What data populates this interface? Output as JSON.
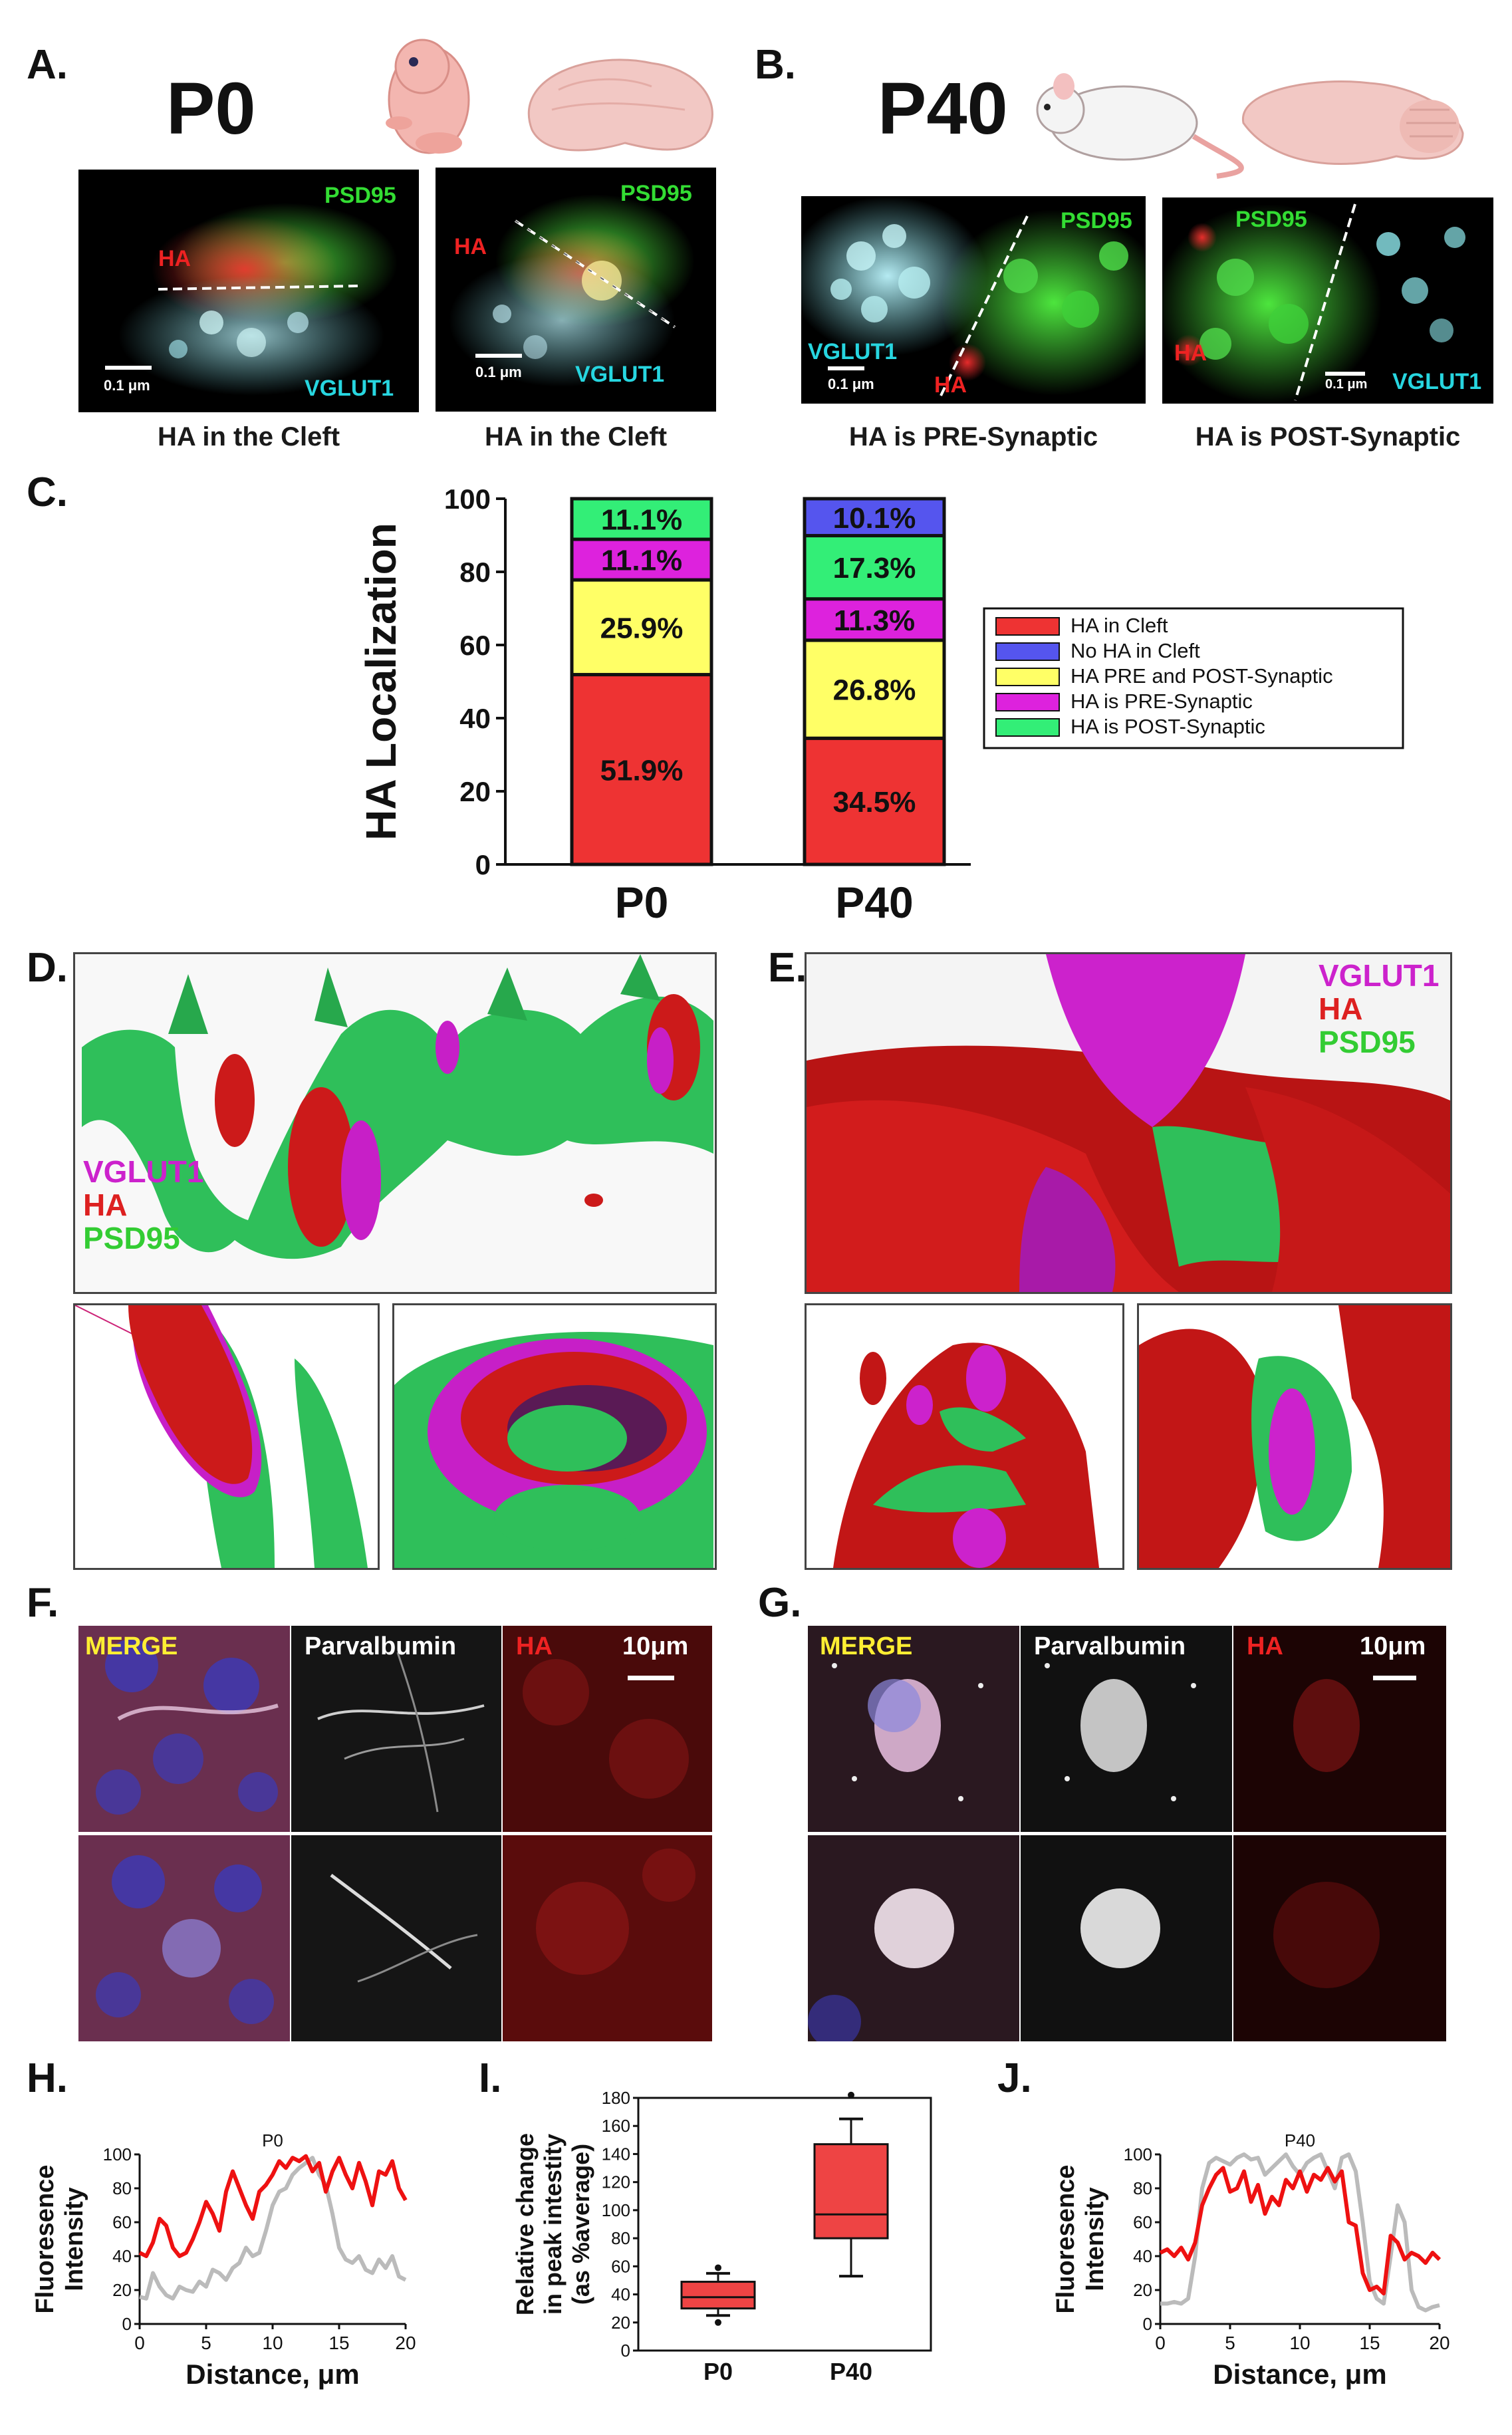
{
  "panels": {
    "A": {
      "letter": "A.",
      "age": "P0",
      "captions": [
        "HA in the Cleft",
        "HA in the Cleft"
      ],
      "img1": {
        "psd": "PSD95",
        "ha": "HA",
        "vglut": "VGLUT1",
        "scale": "0.1 μm"
      },
      "img2": {
        "psd": "PSD95",
        "ha": "HA",
        "vglut": "VGLUT1",
        "scale": "0.1 μm"
      }
    },
    "B": {
      "letter": "B.",
      "age": "P40",
      "captions": [
        "HA is PRE-Synaptic",
        "HA is POST-Synaptic"
      ],
      "img1": {
        "psd": "PSD95",
        "ha": "HA",
        "vglut": "VGLUT1",
        "scale": "0.1 μm"
      },
      "img2": {
        "psd": "PSD95",
        "ha": "HA",
        "vglut": "VGLUT1",
        "scale": "0.1 μm"
      }
    },
    "C": {
      "letter": "C."
    },
    "D": {
      "letter": "D.",
      "legend": [
        "VGLUT1",
        "HA",
        "PSD95"
      ]
    },
    "E": {
      "letter": "E.",
      "legend": [
        "VGLUT1",
        "HA",
        "PSD95"
      ]
    },
    "F": {
      "letter": "F.",
      "merge": "MERGE",
      "pv": "Parvalbumin",
      "ha": "HA",
      "scale": "10μm"
    },
    "G": {
      "letter": "G.",
      "merge": "MERGE",
      "pv": "Parvalbumin",
      "ha": "HA",
      "scale": "10μm"
    },
    "H": {
      "letter": "H."
    },
    "I": {
      "letter": "I."
    },
    "J": {
      "letter": "J."
    }
  },
  "colors": {
    "red": "#ee3333",
    "blue": "#5555ee",
    "yellow": "#ffff66",
    "magenta": "#dd22dd",
    "green": "#33ee77",
    "vglut_text": "#27d6e0",
    "psd_text": "#33dd33",
    "ha_text": "#ee2222",
    "merge_text": "#ffee33",
    "render_magenta": "#cc22cc"
  },
  "chart_data": [
    {
      "id": "C",
      "type": "bar",
      "stacked": true,
      "ylabel": "HA Localization",
      "ylim": [
        0,
        100
      ],
      "yticks": [
        0,
        20,
        40,
        60,
        80,
        100
      ],
      "categories": [
        "P0",
        "P40"
      ],
      "legend": [
        {
          "name": "HA in Cleft",
          "color": "#ee3333"
        },
        {
          "name": "No HA in Cleft",
          "color": "#5555ee"
        },
        {
          "name": "HA PRE and POST-Synaptic",
          "color": "#ffff66"
        },
        {
          "name": "HA is PRE-Synaptic",
          "color": "#dd22dd"
        },
        {
          "name": "HA is POST-Synaptic",
          "color": "#33ee77"
        }
      ],
      "stacks": [
        {
          "category": "P0",
          "segments": [
            {
              "series": "HA in Cleft",
              "value": 51.9,
              "label": "51.9%",
              "color": "#ee3333"
            },
            {
              "series": "HA PRE and POST-Synaptic",
              "value": 25.9,
              "label": "25.9%",
              "color": "#ffff66"
            },
            {
              "series": "HA is PRE-Synaptic",
              "value": 11.1,
              "label": "11.1%",
              "color": "#dd22dd"
            },
            {
              "series": "HA is POST-Synaptic",
              "value": 11.1,
              "label": "11.1%",
              "color": "#33ee77"
            }
          ]
        },
        {
          "category": "P40",
          "segments": [
            {
              "series": "HA in Cleft",
              "value": 34.5,
              "label": "34.5%",
              "color": "#ee3333"
            },
            {
              "series": "HA PRE and POST-Synaptic",
              "value": 26.8,
              "label": "26.8%",
              "color": "#ffff66"
            },
            {
              "series": "HA is PRE-Synaptic",
              "value": 11.3,
              "label": "11.3%",
              "color": "#dd22dd"
            },
            {
              "series": "HA is POST-Synaptic",
              "value": 17.3,
              "label": "17.3%",
              "color": "#33ee77"
            },
            {
              "series": "No HA in Cleft",
              "value": 10.1,
              "label": "10.1%",
              "color": "#5555ee"
            }
          ]
        }
      ]
    },
    {
      "id": "H",
      "type": "line",
      "title": "P0",
      "xlabel": "Distance, μm",
      "ylabel": "Fluoresence Intensity",
      "xlim": [
        0,
        20
      ],
      "ylim": [
        0,
        100
      ],
      "xticks": [
        0,
        5,
        10,
        15,
        20
      ],
      "yticks": [
        0,
        20,
        40,
        60,
        80,
        100
      ],
      "series": [
        {
          "color": "#ee1111",
          "x": [
            0,
            0.5,
            1,
            1.5,
            2,
            2.5,
            3,
            3.5,
            4,
            4.5,
            5,
            5.5,
            6,
            6.5,
            7,
            7.5,
            8,
            8.5,
            9,
            9.5,
            10,
            10.5,
            11,
            11.5,
            12,
            12.5,
            13,
            13.5,
            14,
            14.5,
            15,
            15.5,
            16,
            16.5,
            17,
            17.5,
            18,
            18.5,
            19,
            19.5,
            20
          ],
          "y": [
            42,
            40,
            48,
            62,
            58,
            45,
            40,
            42,
            50,
            60,
            72,
            65,
            55,
            78,
            90,
            80,
            70,
            62,
            78,
            82,
            88,
            96,
            92,
            98,
            96,
            99,
            90,
            95,
            78,
            90,
            98,
            88,
            80,
            95,
            84,
            70,
            90,
            88,
            96,
            80,
            73
          ]
        },
        {
          "color": "#bbbbbb",
          "x": [
            0,
            0.5,
            1,
            1.5,
            2,
            2.5,
            3,
            3.5,
            4,
            4.5,
            5,
            5.5,
            6,
            6.5,
            7,
            7.5,
            8,
            8.5,
            9,
            9.5,
            10,
            10.5,
            11,
            11.5,
            12,
            12.5,
            13,
            13.5,
            14,
            14.5,
            15,
            15.5,
            16,
            16.5,
            17,
            17.5,
            18,
            18.5,
            19,
            19.5,
            20
          ],
          "y": [
            16,
            15,
            30,
            22,
            17,
            15,
            22,
            20,
            19,
            25,
            22,
            32,
            30,
            26,
            33,
            36,
            45,
            40,
            42,
            55,
            70,
            78,
            80,
            88,
            92,
            95,
            98,
            88,
            82,
            65,
            45,
            38,
            36,
            40,
            32,
            30,
            38,
            33,
            40,
            28,
            26
          ]
        }
      ]
    },
    {
      "id": "I",
      "type": "box",
      "ylabel": "Relative change in peak intestity (as %average)",
      "ylim": [
        0,
        180
      ],
      "yticks": [
        0,
        20,
        40,
        60,
        80,
        100,
        120,
        140,
        160,
        180
      ],
      "categories": [
        "P0",
        "P40"
      ],
      "boxes": [
        {
          "category": "P0",
          "min": 25,
          "q1": 30,
          "median": 38,
          "q3": 49,
          "max": 55,
          "outliers": [
            20,
            59
          ]
        },
        {
          "category": "P40",
          "min": 53,
          "q1": 80,
          "median": 97,
          "q3": 147,
          "max": 165,
          "outliers": [
            182
          ]
        }
      ]
    },
    {
      "id": "J",
      "type": "line",
      "title": "P40",
      "xlabel": "Distance, μm",
      "ylabel": "Fluoresence Intensity",
      "xlim": [
        0,
        20
      ],
      "ylim": [
        0,
        100
      ],
      "xticks": [
        0,
        5,
        10,
        15,
        20
      ],
      "yticks": [
        0,
        20,
        40,
        60,
        80,
        100
      ],
      "series": [
        {
          "color": "#ee1111",
          "x": [
            0,
            0.5,
            1,
            1.5,
            2,
            2.5,
            3,
            3.5,
            4,
            4.5,
            5,
            5.5,
            6,
            6.5,
            7,
            7.5,
            8,
            8.5,
            9,
            9.5,
            10,
            10.5,
            11,
            11.5,
            12,
            12.5,
            13,
            13.5,
            14,
            14.5,
            15,
            15.5,
            16,
            16.5,
            17,
            17.5,
            18,
            18.5,
            19,
            19.5,
            20
          ],
          "y": [
            42,
            44,
            40,
            45,
            38,
            48,
            70,
            80,
            88,
            92,
            78,
            80,
            90,
            72,
            82,
            65,
            75,
            70,
            85,
            80,
            90,
            78,
            88,
            85,
            92,
            84,
            90,
            60,
            58,
            30,
            20,
            22,
            18,
            52,
            48,
            38,
            42,
            40,
            36,
            42,
            38
          ]
        },
        {
          "color": "#bbbbbb",
          "x": [
            0,
            0.5,
            1,
            1.5,
            2,
            2.5,
            3,
            3.5,
            4,
            4.5,
            5,
            5.5,
            6,
            6.5,
            7,
            7.5,
            8,
            8.5,
            9,
            9.5,
            10,
            10.5,
            11,
            11.5,
            12,
            12.5,
            13,
            13.5,
            14,
            14.5,
            15,
            15.5,
            16,
            16.5,
            17,
            17.5,
            18,
            18.5,
            19,
            19.5,
            20
          ],
          "y": [
            12,
            12,
            13,
            12,
            15,
            40,
            80,
            95,
            98,
            96,
            94,
            98,
            100,
            97,
            98,
            88,
            92,
            96,
            100,
            93,
            88,
            95,
            98,
            100,
            90,
            80,
            98,
            100,
            90,
            60,
            25,
            15,
            12,
            40,
            70,
            60,
            20,
            10,
            8,
            10,
            11
          ]
        }
      ]
    }
  ]
}
